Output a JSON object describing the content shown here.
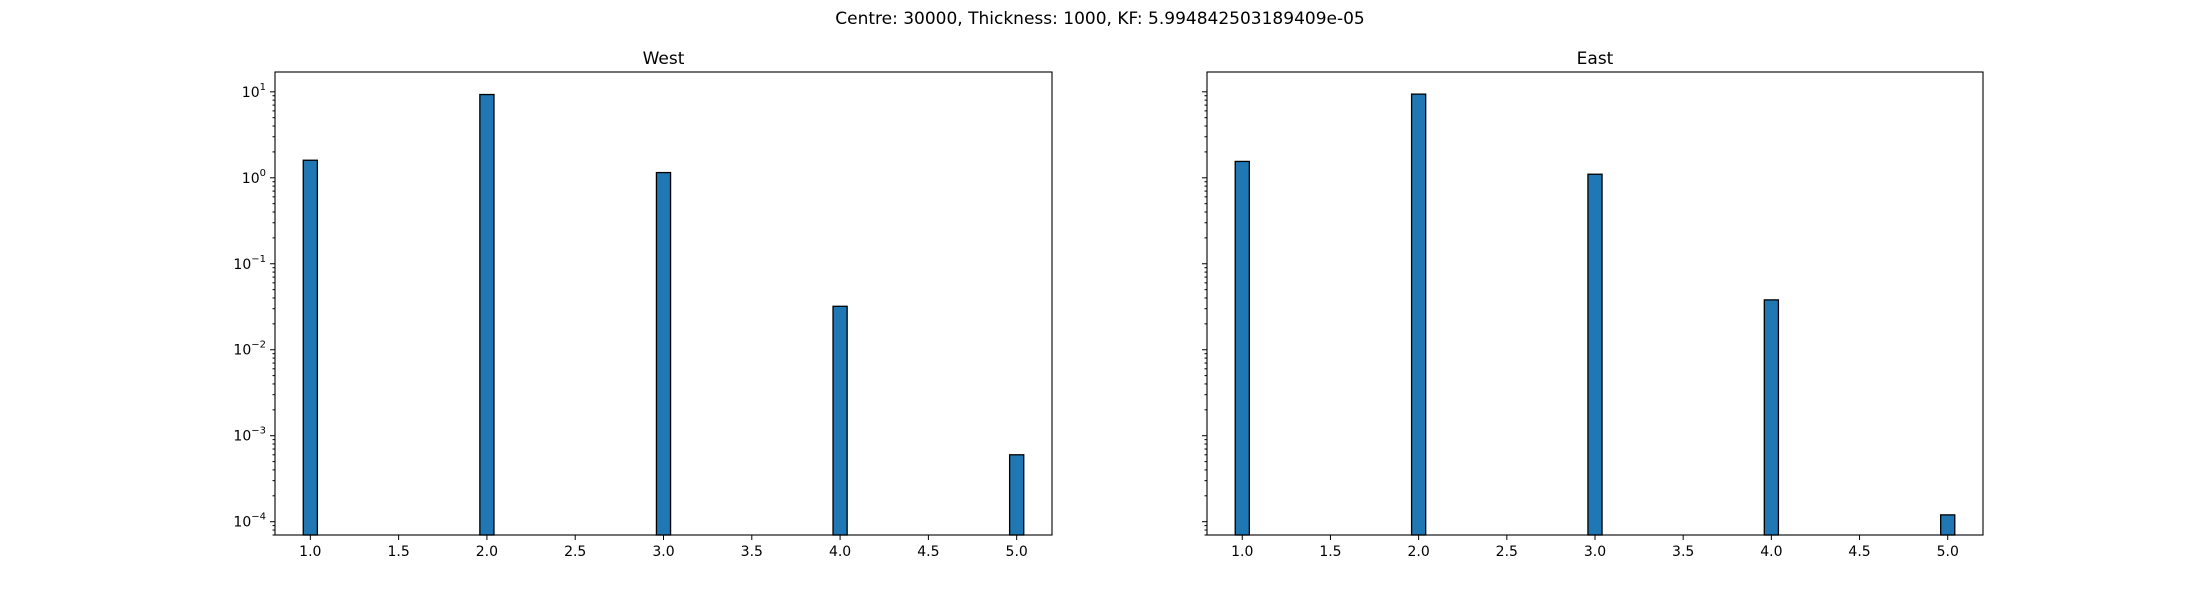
{
  "figure": {
    "suptitle": "Centre: 30000, Thickness: 1000, KF: 5.994842503189409e-05"
  },
  "chart_data": [
    {
      "type": "bar",
      "title": "West",
      "x": [
        1,
        2,
        3,
        4,
        5
      ],
      "values": [
        1.6,
        9.3,
        1.15,
        0.032,
        0.0006
      ],
      "yscale": "log",
      "xlim": [
        0.8,
        5.2
      ],
      "xticks": [
        "1.0",
        "1.5",
        "2.0",
        "2.5",
        "3.0",
        "3.5",
        "4.0",
        "4.5",
        "5.0"
      ],
      "ylim": [
        7e-05,
        17
      ],
      "yticks": [
        "10",
        "10",
        "10",
        "10",
        "10",
        "10"
      ],
      "ytick_exponents": [
        "1",
        "0",
        "−1",
        "−2",
        "−3",
        "−4"
      ],
      "yticklabels_shown": true,
      "bar_color": "#1f77b4",
      "edge_color": "#000000",
      "grid": false
    },
    {
      "type": "bar",
      "title": "East",
      "x": [
        1,
        2,
        3,
        4,
        5
      ],
      "values": [
        1.55,
        9.4,
        1.1,
        0.038,
        0.00012
      ],
      "yscale": "log",
      "xlim": [
        0.8,
        5.2
      ],
      "xticks": [
        "1.0",
        "1.5",
        "2.0",
        "2.5",
        "3.0",
        "3.5",
        "4.0",
        "4.5",
        "5.0"
      ],
      "ylim": [
        7e-05,
        17
      ],
      "yticks": [],
      "yticklabels_shown": false,
      "bar_color": "#1f77b4",
      "edge_color": "#000000",
      "grid": false
    }
  ]
}
